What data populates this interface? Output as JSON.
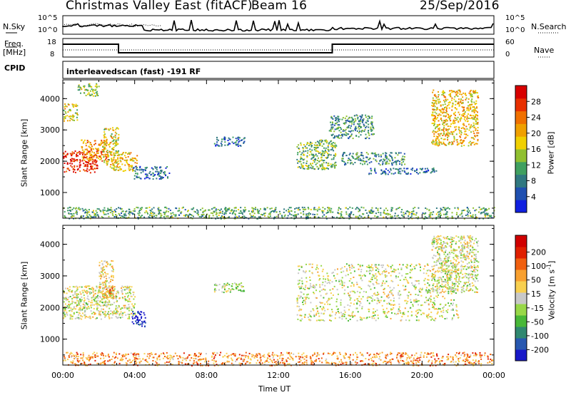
{
  "header": {
    "station": "Christmas Valley East (fitACF)",
    "beam": "Beam 16",
    "date": "25/Sep/2016"
  },
  "top_panels": {
    "nsky_label": "N.Sky",
    "nsky_ticks": [
      "10^5",
      "10^0"
    ],
    "nsearch_label": "N.Search",
    "nsearch_ticks": [
      "10^5",
      "10^0"
    ],
    "freq_label": "Freq.",
    "freq_unit": "[MHz]",
    "freq_ticks": [
      "18",
      "8"
    ],
    "nave_label": "Nave",
    "nave_ticks": [
      "60",
      "0"
    ],
    "cpid_label": "CPID",
    "cpid_text": "interleavedscan (fast) -191 RF"
  },
  "chart_data": [
    {
      "type": "heatmap",
      "panel": "power",
      "ylabel": "Slant Range [km]",
      "yticks": [
        1000,
        2000,
        3000,
        4000
      ],
      "ylim": [
        180,
        4600
      ],
      "xlim_hours": [
        0,
        24
      ],
      "colorbar": {
        "label": "Power [dB]",
        "ticks": [
          4,
          8,
          12,
          16,
          20,
          24,
          28
        ],
        "colors": [
          "#1020e0",
          "#2050b0",
          "#307880",
          "#40a060",
          "#90c030",
          "#f0d000",
          "#f0a000",
          "#f07000",
          "#e83000",
          "#d80000"
        ]
      },
      "regions": [
        {
          "t": [
            0.0,
            1.9
          ],
          "r": [
            1650,
            2350
          ],
          "level": 0.9
        },
        {
          "t": [
            1.0,
            2.5
          ],
          "r": [
            2000,
            2700
          ],
          "level": 0.7
        },
        {
          "t": [
            2.2,
            3.1
          ],
          "r": [
            1900,
            3100
          ],
          "level": 0.55
        },
        {
          "t": [
            2.6,
            4.1
          ],
          "r": [
            1700,
            2300
          ],
          "level": 0.6
        },
        {
          "t": [
            0.0,
            0.8
          ],
          "r": [
            3300,
            3850
          ],
          "level": 0.55
        },
        {
          "t": [
            0.8,
            2.0
          ],
          "r": [
            4100,
            4500
          ],
          "level": 0.45
        },
        {
          "t": [
            3.9,
            5.9
          ],
          "r": [
            1450,
            1850
          ],
          "level": 0.2
        },
        {
          "t": [
            8.4,
            10.1
          ],
          "r": [
            2500,
            2800
          ],
          "level": 0.2
        },
        {
          "t": [
            13.0,
            15.2
          ],
          "r": [
            1750,
            2700
          ],
          "level": 0.4
        },
        {
          "t": [
            14.8,
            17.3
          ],
          "r": [
            2750,
            3500
          ],
          "level": 0.3
        },
        {
          "t": [
            15.5,
            19.0
          ],
          "r": [
            1900,
            2300
          ],
          "level": 0.3
        },
        {
          "t": [
            17.0,
            20.8
          ],
          "r": [
            1600,
            1800
          ],
          "level": 0.2
        },
        {
          "t": [
            20.5,
            23.1
          ],
          "r": [
            2500,
            4300
          ],
          "level": 0.6
        },
        {
          "t": [
            0.0,
            24.0
          ],
          "r": [
            180,
            550
          ],
          "level": 0.35
        }
      ]
    },
    {
      "type": "heatmap",
      "panel": "velocity",
      "ylabel": "Slant Range [km]",
      "xlabel": "Time UT",
      "xticks": [
        "00:00",
        "04:00",
        "08:00",
        "12:00",
        "16:00",
        "20:00",
        "00:00"
      ],
      "yticks": [
        1000,
        2000,
        3000,
        4000
      ],
      "ylim": [
        180,
        4600
      ],
      "xlim_hours": [
        0,
        24
      ],
      "colorbar": {
        "label": "Velocity [m s^-1]",
        "ticks": [
          200,
          100,
          50,
          15,
          -15,
          -50,
          -100,
          -200
        ],
        "colors": [
          "#1818c8",
          "#2858b0",
          "#308870",
          "#48b838",
          "#98d848",
          "#c8c8c8",
          "#f8d050",
          "#f8a030",
          "#f06010",
          "#e02000",
          "#d00000"
        ]
      },
      "regions": [
        {
          "t": [
            0.0,
            4.0
          ],
          "r": [
            1650,
            2700
          ],
          "level": 0.5
        },
        {
          "t": [
            2.0,
            2.8
          ],
          "r": [
            2300,
            3500
          ],
          "level": 0.55
        },
        {
          "t": [
            2.3,
            2.8
          ],
          "r": [
            2300,
            2700
          ],
          "level": 0.75
        },
        {
          "t": [
            3.8,
            4.6
          ],
          "r": [
            1400,
            1900
          ],
          "level": 0.05
        },
        {
          "t": [
            8.4,
            10.1
          ],
          "r": [
            2500,
            2800
          ],
          "level": 0.45
        },
        {
          "t": [
            13.0,
            22.0
          ],
          "r": [
            1600,
            3400
          ],
          "level": 0.5
        },
        {
          "t": [
            20.5,
            23.1
          ],
          "r": [
            2500,
            4300
          ],
          "level": 0.5
        },
        {
          "t": [
            0.0,
            24.0
          ],
          "r": [
            180,
            600
          ],
          "level": 0.7
        }
      ]
    }
  ]
}
